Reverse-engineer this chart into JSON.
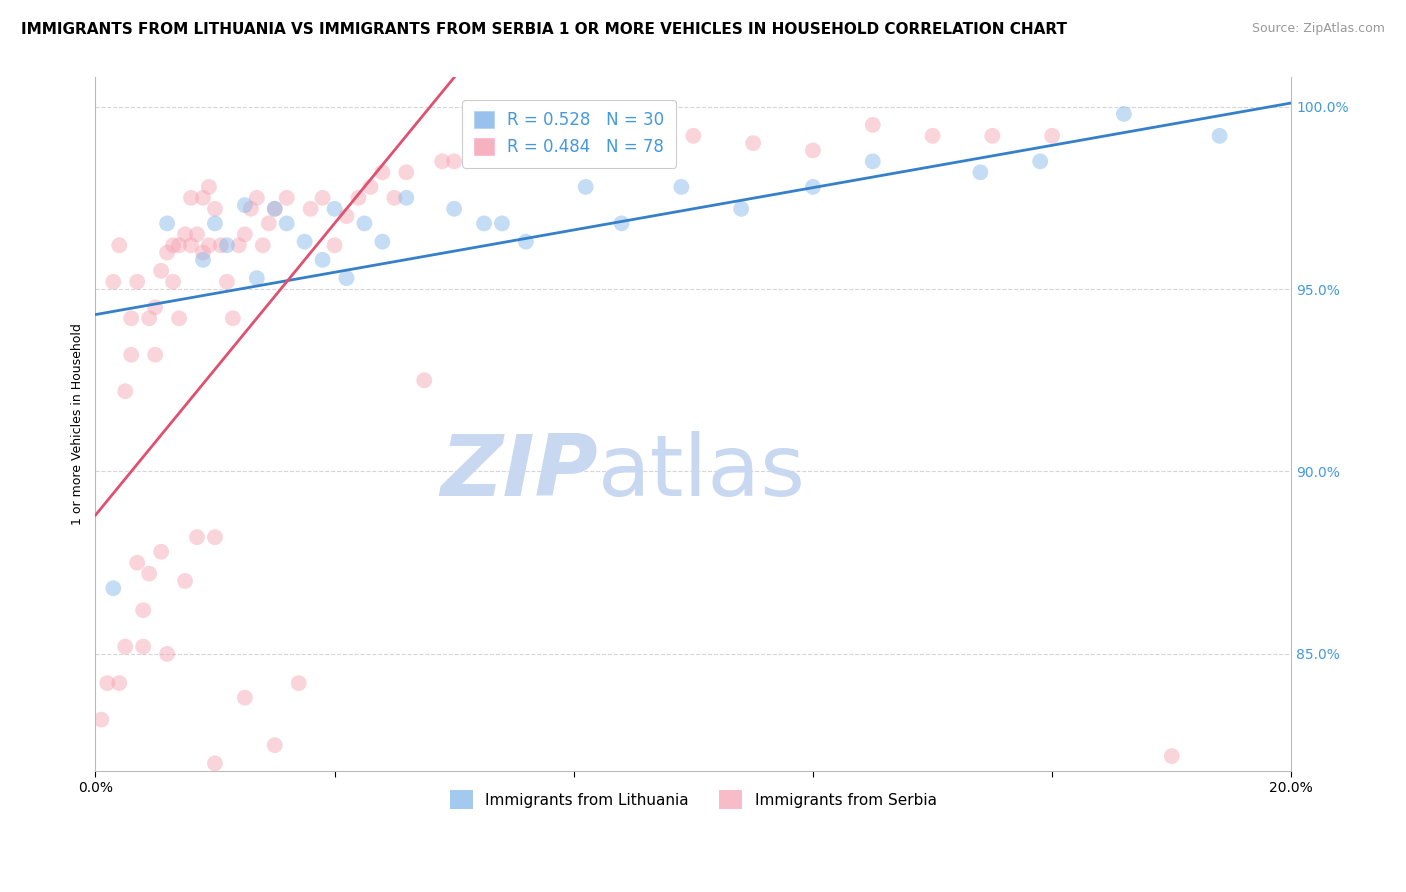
{
  "title": "IMMIGRANTS FROM LITHUANIA VS IMMIGRANTS FROM SERBIA 1 OR MORE VEHICLES IN HOUSEHOLD CORRELATION CHART",
  "source": "Source: ZipAtlas.com",
  "ylabel": "1 or more Vehicles in Household",
  "x_min": 0.0,
  "x_max": 0.2,
  "y_min": 0.818,
  "y_max": 1.008,
  "x_ticks": [
    0.0,
    0.04,
    0.08,
    0.12,
    0.16,
    0.2
  ],
  "y_ticks": [
    0.85,
    0.9,
    0.95,
    1.0
  ],
  "y_tick_labels": [
    "85.0%",
    "90.0%",
    "95.0%",
    "100.0%"
  ],
  "legend_entry1": "R = 0.528   N = 30",
  "legend_entry2": "R = 0.484   N = 78",
  "color_lithuania": "#7EB3E8",
  "color_serbia": "#F4A0B0",
  "trendline_color_lithuania": "#3580C8",
  "trendline_color_serbia": "#E05070",
  "watermark_zip": "ZIP",
  "watermark_atlas": "atlas",
  "watermark_color": "#C8D8F0",
  "bottom_legend": [
    "Immigrants from Lithuania",
    "Immigrants from Serbia"
  ],
  "title_fontsize": 11,
  "source_fontsize": 9,
  "axis_label_fontsize": 9,
  "tick_fontsize": 10,
  "legend_fontsize": 12,
  "scatter_size": 130,
  "scatter_alpha": 0.45,
  "background_color": "#FFFFFF",
  "grid_color": "#CCCCCC",
  "grid_linestyle": "--",
  "grid_alpha": 0.8,
  "scatter_lithuania_x": [
    0.003,
    0.012,
    0.018,
    0.02,
    0.022,
    0.025,
    0.027,
    0.03,
    0.032,
    0.035,
    0.038,
    0.04,
    0.042,
    0.045,
    0.048,
    0.052,
    0.06,
    0.065,
    0.068,
    0.072,
    0.082,
    0.088,
    0.098,
    0.108,
    0.12,
    0.13,
    0.148,
    0.158,
    0.172,
    0.188
  ],
  "scatter_lithuania_y": [
    0.868,
    0.968,
    0.958,
    0.968,
    0.962,
    0.973,
    0.953,
    0.972,
    0.968,
    0.963,
    0.958,
    0.972,
    0.953,
    0.968,
    0.963,
    0.975,
    0.972,
    0.968,
    0.968,
    0.963,
    0.978,
    0.968,
    0.978,
    0.972,
    0.978,
    0.985,
    0.982,
    0.985,
    0.998,
    0.992
  ],
  "scatter_serbia_x": [
    0.001,
    0.002,
    0.003,
    0.004,
    0.004,
    0.005,
    0.005,
    0.006,
    0.006,
    0.007,
    0.007,
    0.008,
    0.008,
    0.009,
    0.009,
    0.01,
    0.01,
    0.011,
    0.011,
    0.012,
    0.012,
    0.013,
    0.013,
    0.014,
    0.014,
    0.015,
    0.015,
    0.016,
    0.016,
    0.017,
    0.017,
    0.018,
    0.018,
    0.019,
    0.019,
    0.02,
    0.02,
    0.021,
    0.022,
    0.023,
    0.024,
    0.025,
    0.026,
    0.027,
    0.028,
    0.029,
    0.03,
    0.032,
    0.034,
    0.036,
    0.038,
    0.04,
    0.042,
    0.044,
    0.046,
    0.048,
    0.05,
    0.052,
    0.055,
    0.058,
    0.06,
    0.065,
    0.07,
    0.075,
    0.08,
    0.085,
    0.09,
    0.1,
    0.11,
    0.12,
    0.13,
    0.14,
    0.15,
    0.16,
    0.03,
    0.025,
    0.02,
    0.18
  ],
  "scatter_serbia_y": [
    0.832,
    0.842,
    0.952,
    0.962,
    0.842,
    0.852,
    0.922,
    0.932,
    0.942,
    0.952,
    0.875,
    0.852,
    0.862,
    0.872,
    0.942,
    0.932,
    0.945,
    0.878,
    0.955,
    0.96,
    0.85,
    0.962,
    0.952,
    0.942,
    0.962,
    0.965,
    0.87,
    0.975,
    0.962,
    0.965,
    0.882,
    0.975,
    0.96,
    0.978,
    0.962,
    0.882,
    0.972,
    0.962,
    0.952,
    0.942,
    0.962,
    0.965,
    0.972,
    0.975,
    0.962,
    0.968,
    0.972,
    0.975,
    0.842,
    0.972,
    0.975,
    0.962,
    0.97,
    0.975,
    0.978,
    0.982,
    0.975,
    0.982,
    0.925,
    0.985,
    0.985,
    0.988,
    0.988,
    0.988,
    0.992,
    0.99,
    0.99,
    0.992,
    0.99,
    0.988,
    0.995,
    0.992,
    0.992,
    0.992,
    0.825,
    0.838,
    0.82,
    0.822
  ],
  "trendline_lith_x0": 0.0,
  "trendline_lith_y0": 0.943,
  "trendline_lith_x1": 0.2,
  "trendline_lith_y1": 1.001,
  "trendline_serb_x0": 0.0,
  "trendline_serb_y0": 0.888,
  "trendline_serb_x1": 0.04,
  "trendline_serb_y1": 0.968
}
